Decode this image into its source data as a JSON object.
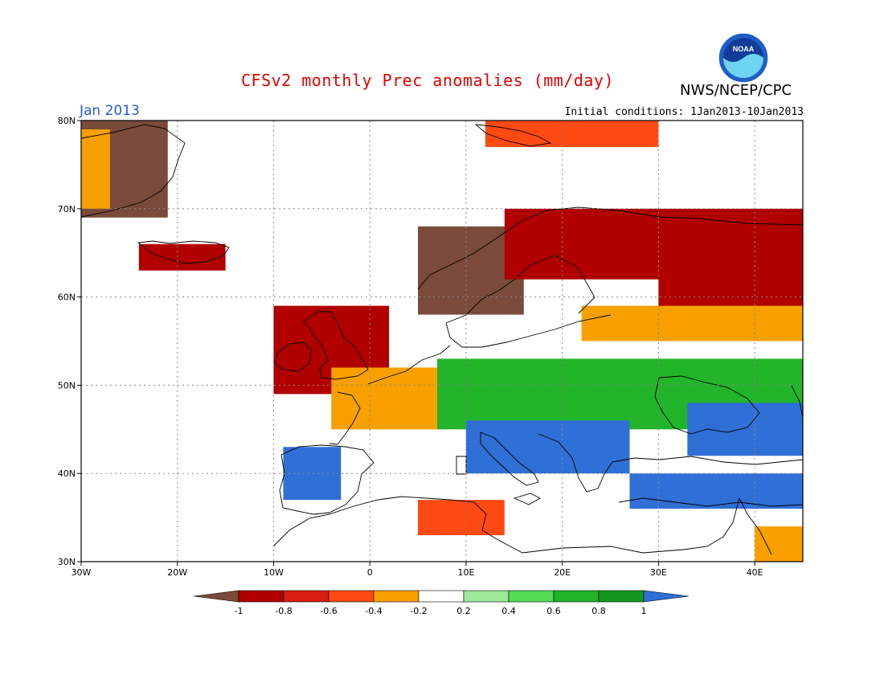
{
  "title": "CFSv2 monthly Prec anomalies (mm/day)",
  "agency": "NWS/NCEP/CPC",
  "logo_text": "NOAA",
  "month_label": "Jan 2013",
  "initial_conditions": "Initial conditions: 1Jan2013-10Jan2013",
  "map": {
    "lon_range": [
      -30,
      45
    ],
    "lat_range": [
      30,
      80
    ],
    "grid": true,
    "lat_ticks": [
      {
        "value": 80,
        "label": "80N"
      },
      {
        "value": 70,
        "label": "70N"
      },
      {
        "value": 60,
        "label": "60N"
      },
      {
        "value": 50,
        "label": "50N"
      },
      {
        "value": 40,
        "label": "40N"
      },
      {
        "value": 30,
        "label": "30N"
      }
    ],
    "lon_ticks": [
      {
        "value": -30,
        "label": "30W"
      },
      {
        "value": -20,
        "label": "20W"
      },
      {
        "value": -10,
        "label": "10W"
      },
      {
        "value": 0,
        "label": "0"
      },
      {
        "value": 10,
        "label": "10E"
      },
      {
        "value": 20,
        "label": "20E"
      },
      {
        "value": 30,
        "label": "30E"
      },
      {
        "value": 40,
        "label": "40E"
      }
    ]
  },
  "colorbar": {
    "labels": [
      "-1",
      "-0.8",
      "-0.6",
      "-0.4",
      "-0.2",
      "0.2",
      "0.4",
      "0.6",
      "0.8",
      "1"
    ],
    "below_color": "#7a4a3a",
    "above_color": "#2f6fd6",
    "bins": [
      {
        "range": [
          -1,
          -0.8
        ],
        "color": "#b00000"
      },
      {
        "range": [
          -0.8,
          -0.6
        ],
        "color": "#d81e10"
      },
      {
        "range": [
          -0.6,
          -0.4
        ],
        "color": "#ff4a14"
      },
      {
        "range": [
          -0.4,
          -0.2
        ],
        "color": "#f8a000"
      },
      {
        "range": [
          -0.2,
          0.2
        ],
        "color": "#ffffff"
      },
      {
        "range": [
          0.2,
          0.4
        ],
        "color": "#9ee89a"
      },
      {
        "range": [
          0.4,
          0.6
        ],
        "color": "#55dc55"
      },
      {
        "range": [
          0.6,
          0.8
        ],
        "color": "#22b42a"
      },
      {
        "range": [
          0.8,
          1
        ],
        "color": "#14961e"
      }
    ]
  },
  "anomaly_regions": [
    {
      "label": "Greenland east coast",
      "lon": [
        -30,
        -21
      ],
      "lat": [
        69,
        80
      ],
      "value": -1.2
    },
    {
      "label": "Greenland margin",
      "lon": [
        -30,
        -27
      ],
      "lat": [
        70,
        79
      ],
      "value": -0.3
    },
    {
      "label": "Iceland",
      "lon": [
        -24,
        -15
      ],
      "lat": [
        63,
        66
      ],
      "value": -0.9
    },
    {
      "label": "Svalbard",
      "lon": [
        12,
        30
      ],
      "lat": [
        77,
        80
      ],
      "value": -0.5
    },
    {
      "label": "Scandinavia west",
      "lon": [
        5,
        16
      ],
      "lat": [
        58,
        68
      ],
      "value": -1.1
    },
    {
      "label": "Northern Fennoscandia",
      "lon": [
        14,
        45
      ],
      "lat": [
        62,
        70
      ],
      "value": -0.9
    },
    {
      "label": "NW Russia",
      "lon": [
        30,
        45
      ],
      "lat": [
        57,
        67
      ],
      "value": -0.85
    },
    {
      "label": "Baltic band",
      "lon": [
        22,
        45
      ],
      "lat": [
        55,
        59
      ],
      "value": -0.3
    },
    {
      "label": "British Isles",
      "lon": [
        -10,
        2
      ],
      "lat": [
        49,
        59
      ],
      "value": -0.9
    },
    {
      "label": "Biscay / France west",
      "lon": [
        -4,
        8
      ],
      "lat": [
        45,
        52
      ],
      "value": -0.35
    },
    {
      "label": "Central Europe",
      "lon": [
        7,
        45
      ],
      "lat": [
        45,
        53
      ],
      "value": 0.7
    },
    {
      "label": "Italy / Balkans",
      "lon": [
        10,
        27
      ],
      "lat": [
        40,
        46
      ],
      "value": 1.2
    },
    {
      "label": "Black Sea",
      "lon": [
        33,
        45
      ],
      "lat": [
        42,
        48
      ],
      "value": 1.1
    },
    {
      "label": "Turkey",
      "lon": [
        27,
        45
      ],
      "lat": [
        36,
        40
      ],
      "value": 1.1
    },
    {
      "label": "Iberia west",
      "lon": [
        -9,
        -3
      ],
      "lat": [
        37,
        43
      ],
      "value": 1.1
    },
    {
      "label": "North Africa",
      "lon": [
        5,
        14
      ],
      "lat": [
        33,
        37
      ],
      "value": -0.5
    },
    {
      "label": "Levant",
      "lon": [
        40,
        45
      ],
      "lat": [
        30,
        34
      ],
      "value": -0.3
    }
  ]
}
